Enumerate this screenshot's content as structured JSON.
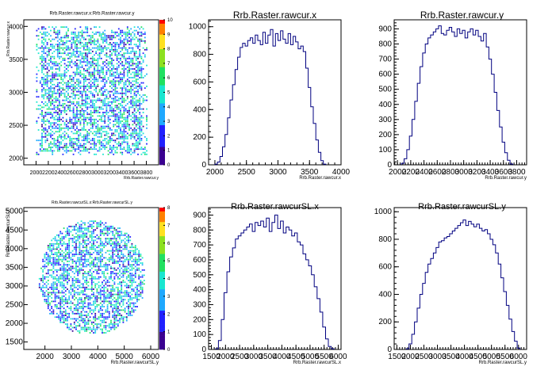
{
  "chart_data": [
    {
      "type": "heatmap",
      "title": "Rrb.Raster.rawcur.x:Rrb.Raster.rawcur.y",
      "xlabel": "Rrb.Raster.rawcur.y",
      "ylabel": "Rrb.Raster.rawcur.x",
      "xlim": [
        1800,
        4000
      ],
      "ylim": [
        1900,
        4100
      ],
      "x_ticks": [
        "2000",
        "2200",
        "2400",
        "2600",
        "2800",
        "3000",
        "3200",
        "3400",
        "3600",
        "3800"
      ],
      "y_ticks": [
        "2000",
        "2500",
        "3000",
        "3500",
        "4000"
      ],
      "y_tick_values": [
        2000,
        2500,
        3000,
        3500,
        4000
      ],
      "shape": "square",
      "region": {
        "x": [
          2000,
          3800
        ],
        "y": [
          2050,
          4000
        ]
      },
      "z_range": [
        0,
        10
      ],
      "z_ticks": [
        "0",
        "1",
        "2",
        "3",
        "4",
        "5",
        "6",
        "7",
        "8",
        "9",
        "10"
      ]
    },
    {
      "type": "line",
      "title": "Rrb.Raster.rawcur.x",
      "xlabel": "Rrb.Raster.rawcur.x",
      "xlim": [
        1900,
        4000
      ],
      "ylim": [
        0,
        1050
      ],
      "x_ticks": [
        2000,
        2500,
        3000,
        3500,
        4000
      ],
      "y_ticks": [
        0,
        200,
        400,
        600,
        800,
        1000
      ],
      "x": [
        2020,
        2060,
        2100,
        2140,
        2180,
        2220,
        2260,
        2300,
        2340,
        2380,
        2420,
        2460,
        2500,
        2540,
        2580,
        2620,
        2660,
        2700,
        2740,
        2780,
        2820,
        2860,
        2900,
        2940,
        2980,
        3020,
        3060,
        3100,
        3140,
        3180,
        3220,
        3260,
        3300,
        3340,
        3380,
        3420,
        3460,
        3500,
        3540,
        3580,
        3620,
        3660,
        3700,
        3740
      ],
      "y": [
        5,
        20,
        60,
        130,
        220,
        340,
        470,
        580,
        690,
        780,
        850,
        880,
        860,
        900,
        920,
        880,
        940,
        900,
        870,
        960,
        880,
        940,
        980,
        860,
        950,
        900,
        970,
        910,
        880,
        950,
        870,
        930,
        890,
        840,
        860,
        820,
        700,
        560,
        420,
        300,
        180,
        90,
        30,
        5
      ]
    },
    {
      "type": "line",
      "title": "Rrb.Raster.rawcur.y",
      "xlabel": "Rrb.Raster.rawcur.y",
      "xlim": [
        1950,
        3950
      ],
      "ylim": [
        0,
        960
      ],
      "x_ticks": [
        2000,
        2200,
        2400,
        2600,
        2800,
        3000,
        3200,
        3400,
        3600,
        3800
      ],
      "y_ticks": [
        0,
        100,
        200,
        300,
        400,
        500,
        600,
        700,
        800,
        900
      ],
      "x": [
        2080,
        2120,
        2160,
        2200,
        2240,
        2280,
        2320,
        2360,
        2400,
        2440,
        2480,
        2520,
        2560,
        2600,
        2640,
        2680,
        2720,
        2760,
        2800,
        2840,
        2880,
        2920,
        2960,
        3000,
        3040,
        3080,
        3120,
        3160,
        3200,
        3240,
        3280,
        3320,
        3360,
        3400,
        3440,
        3480,
        3520,
        3560,
        3600,
        3640,
        3680,
        3720
      ],
      "y": [
        10,
        40,
        100,
        190,
        300,
        420,
        540,
        650,
        740,
        800,
        840,
        860,
        880,
        900,
        920,
        870,
        860,
        890,
        910,
        880,
        850,
        900,
        870,
        890,
        840,
        880,
        900,
        860,
        890,
        850,
        820,
        870,
        780,
        700,
        600,
        480,
        360,
        250,
        150,
        80,
        30,
        5
      ]
    },
    {
      "type": "heatmap",
      "title": "Rrb.Raster.rawcurSL.x:Rrb.Raster.rawcurSL.y",
      "xlabel": "Rrb.Raster.rawcurSL.y",
      "ylabel": "Rrb.Raster.rawcurSL.x",
      "xlim": [
        1200,
        6300
      ],
      "ylim": [
        1300,
        5100
      ],
      "x_ticks": [
        "2000",
        "3000",
        "4000",
        "5000",
        "6000"
      ],
      "y_ticks": [
        "1500",
        "2000",
        "2500",
        "3000",
        "3500",
        "4000",
        "4500",
        "5000"
      ],
      "y_tick_values": [
        1500,
        2000,
        2500,
        3000,
        3500,
        4000,
        4500,
        5000
      ],
      "shape": "disk",
      "region": {
        "x": [
          1700,
          5800
        ],
        "y": [
          1700,
          4800
        ]
      },
      "z_range": [
        0,
        8
      ],
      "z_ticks": [
        "0",
        "1",
        "2",
        "3",
        "4",
        "5",
        "6",
        "7",
        "8"
      ]
    },
    {
      "type": "line",
      "title": "Rrb.Raster.rawcurSL.x",
      "xlabel": "Rrb.Raster.rawcurSL.x",
      "xlim": [
        1400,
        6100
      ],
      "ylim": [
        0,
        950
      ],
      "x_ticks": [
        1500,
        2000,
        2500,
        3000,
        3500,
        4000,
        4500,
        5000,
        5500,
        6000
      ],
      "y_ticks": [
        0,
        100,
        200,
        300,
        400,
        500,
        600,
        700,
        800,
        900
      ],
      "x": [
        1700,
        1800,
        1900,
        2000,
        2100,
        2200,
        2300,
        2400,
        2500,
        2600,
        2700,
        2800,
        2900,
        3000,
        3100,
        3200,
        3300,
        3400,
        3500,
        3600,
        3700,
        3800,
        3900,
        4000,
        4100,
        4200,
        4300,
        4400,
        4500,
        4600,
        4700,
        4800,
        4900,
        5000,
        5100,
        5200,
        5300,
        5400,
        5500,
        5600,
        5700,
        5800
      ],
      "y": [
        5,
        60,
        200,
        380,
        520,
        620,
        680,
        740,
        760,
        780,
        800,
        820,
        840,
        790,
        850,
        830,
        860,
        820,
        880,
        790,
        850,
        900,
        810,
        860,
        780,
        820,
        800,
        760,
        780,
        720,
        700,
        640,
        600,
        560,
        500,
        420,
        340,
        250,
        150,
        70,
        20,
        5
      ]
    },
    {
      "type": "line",
      "title": "Rrb.Raster.rawcurSL.y",
      "xlabel": "Rrb.Raster.rawcurSL.y",
      "xlim": [
        1400,
        6300
      ],
      "ylim": [
        0,
        1030
      ],
      "x_ticks": [
        1500,
        2000,
        2500,
        3000,
        3500,
        4000,
        4500,
        5000,
        5500,
        6000
      ],
      "y_ticks": [
        0,
        200,
        400,
        600,
        800,
        1000
      ],
      "x": [
        1900,
        2000,
        2100,
        2200,
        2300,
        2400,
        2500,
        2600,
        2700,
        2800,
        2900,
        3000,
        3100,
        3200,
        3300,
        3400,
        3500,
        3600,
        3700,
        3800,
        3900,
        4000,
        4100,
        4200,
        4300,
        4400,
        4500,
        4600,
        4700,
        4800,
        4900,
        5000,
        5100,
        5200,
        5300,
        5400,
        5500,
        5600,
        5700,
        5800,
        5900,
        6000
      ],
      "y": [
        5,
        40,
        110,
        200,
        300,
        400,
        480,
        560,
        620,
        660,
        700,
        740,
        780,
        790,
        810,
        820,
        840,
        860,
        880,
        900,
        920,
        940,
        900,
        930,
        910,
        890,
        910,
        880,
        860,
        870,
        840,
        800,
        760,
        700,
        620,
        520,
        420,
        320,
        220,
        130,
        60,
        10
      ]
    }
  ]
}
